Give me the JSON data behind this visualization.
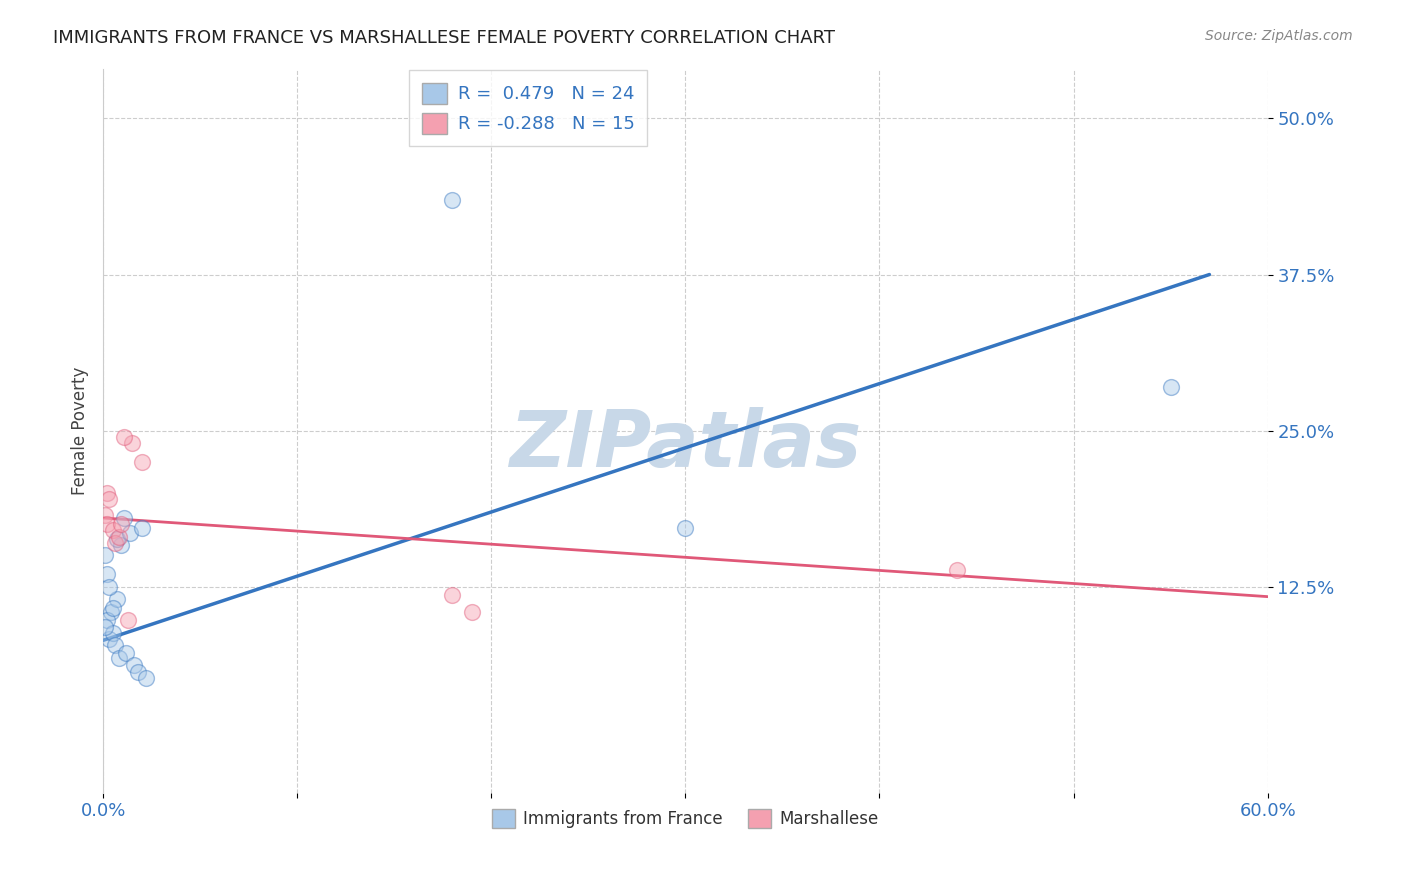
{
  "title": "IMMIGRANTS FROM FRANCE VS MARSHALLESE FEMALE POVERTY CORRELATION CHART",
  "source": "Source: ZipAtlas.com",
  "xlabel_blue": "Immigrants from France",
  "xlabel_pink": "Marshallese",
  "ylabel": "Female Poverty",
  "xlim": [
    0.0,
    0.6
  ],
  "ylim": [
    -0.04,
    0.54
  ],
  "xticks": [
    0.0,
    0.1,
    0.2,
    0.3,
    0.4,
    0.5,
    0.6
  ],
  "xtick_labels": [
    "0.0%",
    "",
    "",
    "",
    "",
    "",
    "60.0%"
  ],
  "ytick_labels": [
    "12.5%",
    "25.0%",
    "37.5%",
    "50.0%"
  ],
  "ytick_vals": [
    0.125,
    0.25,
    0.375,
    0.5
  ],
  "R_blue": 0.479,
  "N_blue": 24,
  "R_pink": -0.288,
  "N_pink": 15,
  "blue_color": "#a8c8e8",
  "pink_color": "#f4a0b0",
  "line_blue": "#3575c0",
  "line_pink": "#e05878",
  "blue_scatter_x": [
    0.004,
    0.007,
    0.002,
    0.003,
    0.005,
    0.001,
    0.001,
    0.002,
    0.003,
    0.005,
    0.006,
    0.008,
    0.011,
    0.009,
    0.007,
    0.014,
    0.012,
    0.016,
    0.018,
    0.022,
    0.02,
    0.18,
    0.55,
    0.3
  ],
  "blue_scatter_y": [
    0.105,
    0.115,
    0.098,
    0.083,
    0.088,
    0.093,
    0.15,
    0.135,
    0.125,
    0.108,
    0.078,
    0.068,
    0.18,
    0.158,
    0.163,
    0.168,
    0.072,
    0.062,
    0.057,
    0.052,
    0.172,
    0.435,
    0.285,
    0.172
  ],
  "blue_line_x": [
    0.0,
    0.57
  ],
  "blue_line_y": [
    0.082,
    0.375
  ],
  "pink_scatter_x": [
    0.002,
    0.003,
    0.001,
    0.002,
    0.005,
    0.006,
    0.008,
    0.009,
    0.015,
    0.02,
    0.18,
    0.44,
    0.19,
    0.011,
    0.013
  ],
  "pink_scatter_y": [
    0.2,
    0.195,
    0.182,
    0.175,
    0.17,
    0.16,
    0.165,
    0.175,
    0.24,
    0.225,
    0.118,
    0.138,
    0.105,
    0.245,
    0.098
  ],
  "pink_line_x": [
    0.0,
    0.6
  ],
  "pink_line_y": [
    0.18,
    0.117
  ],
  "watermark": "ZIPatlas",
  "watermark_color": "#c8d8e8",
  "scatter_size": 130,
  "scatter_alpha": 0.45
}
